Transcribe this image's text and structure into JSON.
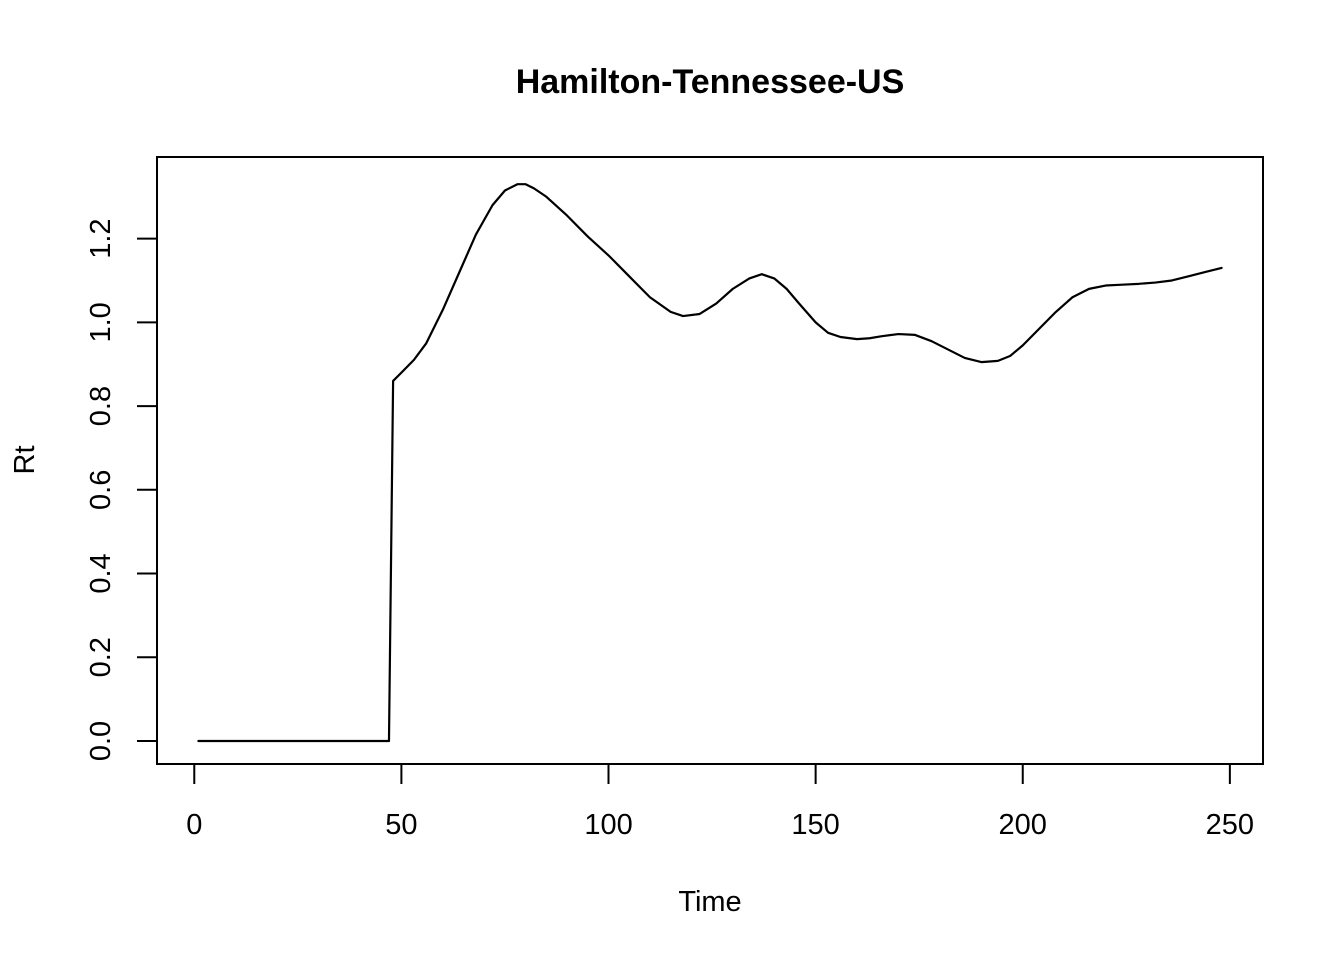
{
  "chart_data": {
    "type": "line",
    "title": "Hamilton-Tennessee-US",
    "xlabel": "Time",
    "ylabel": "Rt",
    "xlim": [
      -9,
      258
    ],
    "ylim": [
      -0.055,
      1.395
    ],
    "x_ticks": [
      0,
      50,
      100,
      150,
      200,
      250
    ],
    "y_ticks": [
      0.0,
      0.2,
      0.4,
      0.6,
      0.8,
      1.0,
      1.2
    ],
    "x_tick_labels": [
      "0",
      "50",
      "100",
      "150",
      "200",
      "250"
    ],
    "y_tick_labels": [
      "0.0",
      "0.2",
      "0.4",
      "0.6",
      "0.8",
      "1.0",
      "1.2"
    ],
    "grid": false,
    "series": [
      {
        "color": "#000000",
        "x": [
          1,
          10,
          20,
          30,
          40,
          47,
          47.5,
          48,
          50,
          53,
          56,
          60,
          64,
          68,
          72,
          75,
          78,
          80,
          82,
          85,
          90,
          95,
          100,
          105,
          110,
          115,
          118,
          122,
          126,
          130,
          134,
          137,
          140,
          143,
          146,
          150,
          153,
          156,
          160,
          163,
          166,
          170,
          174,
          178,
          182,
          186,
          190,
          194,
          197,
          200,
          204,
          208,
          212,
          216,
          220,
          224,
          228,
          232,
          236,
          240,
          244,
          248
        ],
        "y": [
          0.0,
          0.0,
          0.0,
          0.0,
          0.0,
          0.0,
          0.43,
          0.86,
          0.88,
          0.91,
          0.95,
          1.03,
          1.12,
          1.21,
          1.28,
          1.315,
          1.33,
          1.33,
          1.32,
          1.3,
          1.255,
          1.205,
          1.16,
          1.11,
          1.06,
          1.025,
          1.015,
          1.02,
          1.045,
          1.08,
          1.105,
          1.115,
          1.105,
          1.08,
          1.045,
          1.0,
          0.975,
          0.965,
          0.96,
          0.962,
          0.967,
          0.972,
          0.97,
          0.955,
          0.935,
          0.915,
          0.905,
          0.908,
          0.92,
          0.945,
          0.985,
          1.025,
          1.06,
          1.08,
          1.088,
          1.09,
          1.092,
          1.095,
          1.1,
          1.11,
          1.12,
          1.13
        ]
      }
    ]
  }
}
